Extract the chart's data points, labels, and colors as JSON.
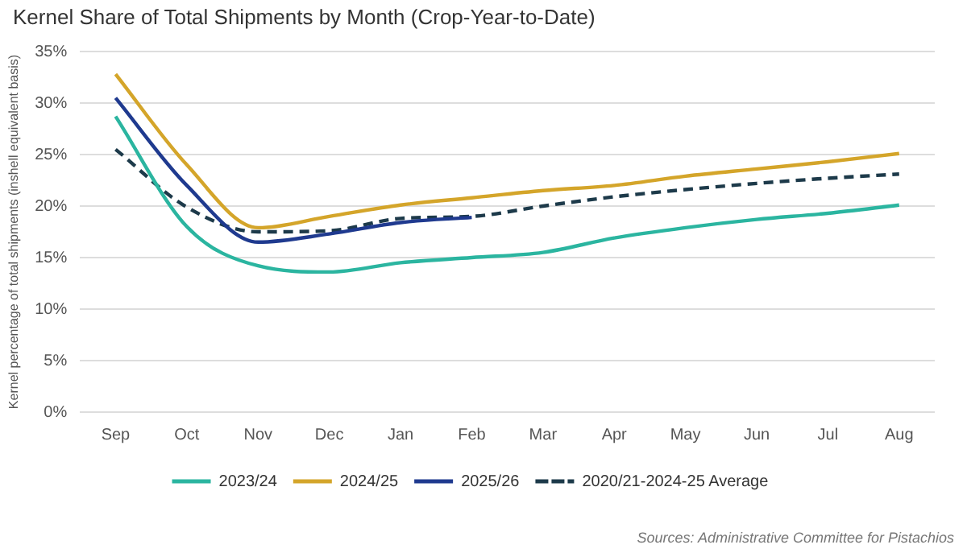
{
  "chart_data": {
    "type": "line",
    "title": "Kernel Share of Total Shipments by Month (Crop-Year-to-Date)",
    "ylabel": "Kernel percentage of total shipments (inshell equivalent basis)",
    "categories": [
      "Sep",
      "Oct",
      "Nov",
      "Dec",
      "Jan",
      "Feb",
      "Mar",
      "Apr",
      "May",
      "Jun",
      "Jul",
      "Aug"
    ],
    "series": [
      {
        "name": "2023/24",
        "color": "#2bb5a0",
        "values": [
          28.7,
          18,
          14.2,
          13.6,
          14.5,
          15,
          15.5,
          16.9,
          17.9,
          18.7,
          19.3,
          20.1
        ]
      },
      {
        "name": "2024/25",
        "color": "#d4a52a",
        "values": [
          32.8,
          24,
          17.9,
          19,
          20.1,
          20.8,
          21.5,
          22,
          22.9,
          23.6,
          24.3,
          25.1
        ]
      },
      {
        "name": "2025/26",
        "color": "#1f3a8f",
        "values": [
          30.5,
          22,
          16.5,
          17.3,
          18.4,
          18.9,
          null,
          null,
          null,
          null,
          null,
          null
        ]
      },
      {
        "name": "2020/21-2024-25 Average",
        "color": "#1d3a4a",
        "line_style": "dashed",
        "values": [
          25.5,
          19.9,
          17.5,
          17.6,
          18.8,
          19,
          20,
          20.9,
          21.6,
          22.2,
          22.7,
          23.1
        ]
      }
    ],
    "ylim": [
      0,
      35
    ],
    "yticks": [
      {
        "value": 0,
        "label": "0%"
      },
      {
        "value": 5,
        "label": "5%"
      },
      {
        "value": 10,
        "label": "10%"
      },
      {
        "value": 15,
        "label": "15%"
      },
      {
        "value": 20,
        "label": "20%"
      },
      {
        "value": 25,
        "label": "25%"
      },
      {
        "value": 30,
        "label": "30%"
      },
      {
        "value": 35,
        "label": "35%"
      }
    ],
    "grid": "y",
    "legend": "bottom",
    "marker": "none",
    "annotations": [
      "Sources: Administrative Committee for Pistachios"
    ]
  }
}
